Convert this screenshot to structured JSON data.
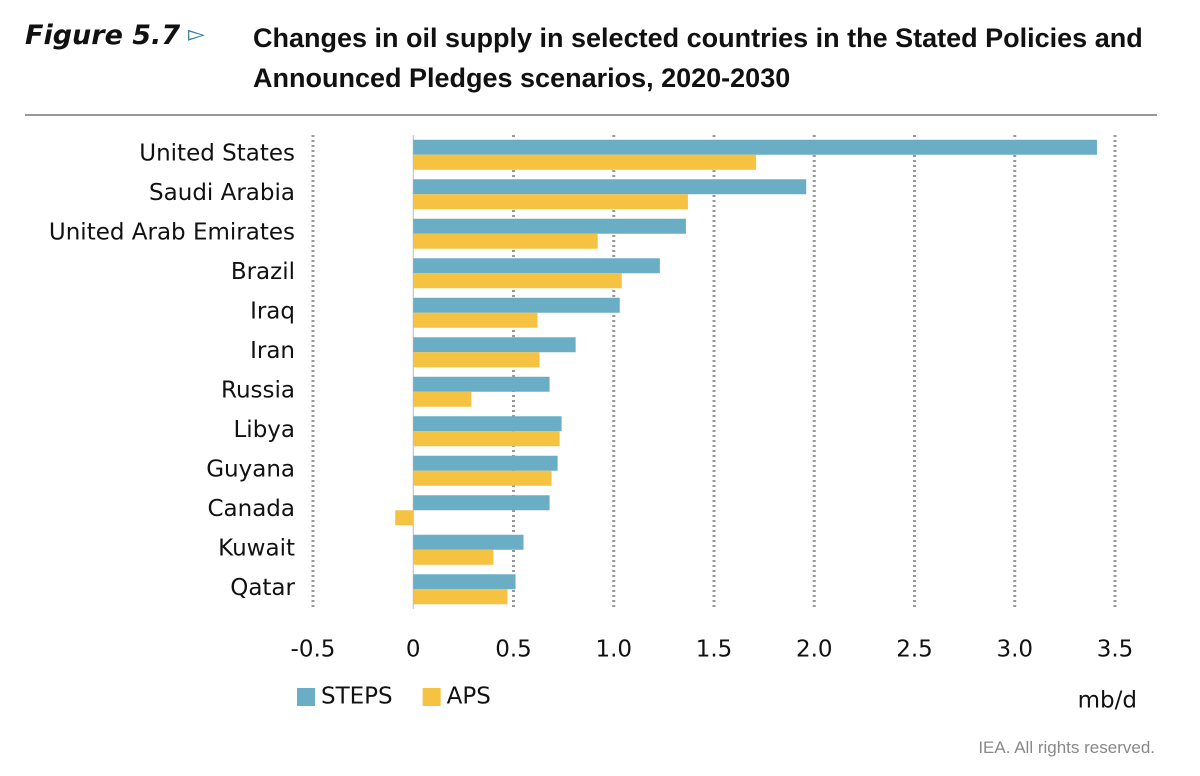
{
  "chart_data": {
    "type": "bar",
    "orientation": "horizontal",
    "figure_label": "Figure 5.7",
    "title": "Changes in oil supply in selected countries in the Stated Policies and Announced Pledges scenarios, 2020-2030",
    "categories": [
      "United States",
      "Saudi Arabia",
      "United Arab Emirates",
      "Brazil",
      "Iraq",
      "Iran",
      "Russia",
      "Libya",
      "Guyana",
      "Canada",
      "Kuwait",
      "Qatar"
    ],
    "series": [
      {
        "name": "STEPS",
        "color": "#6aaec6",
        "values": [
          3.41,
          1.96,
          1.36,
          1.23,
          1.03,
          0.81,
          0.68,
          0.74,
          0.72,
          0.68,
          0.55,
          0.51
        ]
      },
      {
        "name": "APS",
        "color": "#f5c242",
        "values": [
          1.71,
          1.37,
          0.92,
          1.04,
          0.62,
          0.63,
          0.29,
          0.73,
          0.69,
          -0.09,
          0.4,
          0.47
        ]
      }
    ],
    "xlim": [
      -0.5,
      3.5
    ],
    "xticks": [
      -0.5,
      0,
      0.5,
      {
        "value": 1,
        "label": "1.0"
      },
      1.5,
      {
        "value": 2,
        "label": "2.0"
      },
      2.5,
      {
        "value": 3,
        "label": "3.0"
      },
      3.5
    ],
    "grid": true,
    "unit_label": "mb/d",
    "legend_position": "bottom-left",
    "footer": "IEA. All rights reserved."
  }
}
